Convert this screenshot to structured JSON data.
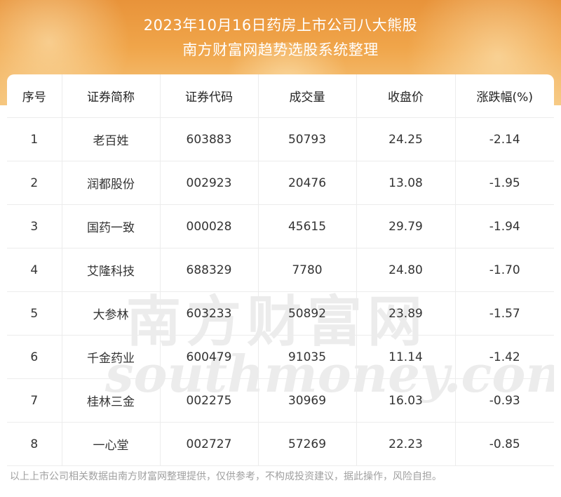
{
  "header": {
    "title_line1": "2023年10月16日药房上市公司八大熊股",
    "title_line2": "南方财富网趋势选股系统整理"
  },
  "table": {
    "columns": [
      "序号",
      "证券简称",
      "证券代码",
      "成交量",
      "收盘价",
      "涨跌幅(%)"
    ],
    "rows": [
      [
        "1",
        "老百姓",
        "603883",
        "50793",
        "24.25",
        "-2.14"
      ],
      [
        "2",
        "润都股份",
        "002923",
        "20476",
        "13.08",
        "-1.95"
      ],
      [
        "3",
        "国药一致",
        "000028",
        "45615",
        "29.79",
        "-1.94"
      ],
      [
        "4",
        "艾隆科技",
        "688329",
        "7780",
        "24.80",
        "-1.70"
      ],
      [
        "5",
        "大参林",
        "603233",
        "50892",
        "23.89",
        "-1.57"
      ],
      [
        "6",
        "千金药业",
        "600479",
        "91035",
        "11.14",
        "-1.42"
      ],
      [
        "7",
        "桂林三金",
        "002275",
        "30969",
        "16.03",
        "-0.93"
      ],
      [
        "8",
        "一心堂",
        "002727",
        "57269",
        "22.23",
        "-0.85"
      ]
    ]
  },
  "watermark": {
    "cn": "南方财富网",
    "en": "southmoney.com"
  },
  "footer": {
    "disclaimer": "以上上市公司相关数据由南方财富网整理提供，仅供参考，不构成投资建议，据此操作，风险自担。"
  },
  "colors": {
    "header_top": "#e8933a",
    "header_bottom": "#f6c77f",
    "grid_line": "#ececec",
    "footer_text": "#a0a0a0"
  }
}
